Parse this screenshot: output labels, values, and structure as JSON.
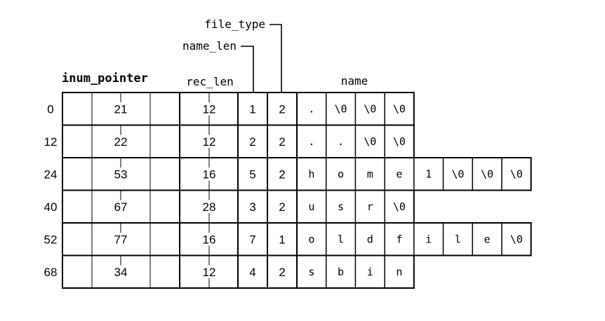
{
  "labels": {
    "inum_pointer": "inum_pointer",
    "rec_len": "rec_len",
    "name_len": "name_len",
    "file_type": "file_type",
    "name": "name"
  },
  "rows": [
    {
      "offset": "0",
      "inode": "21",
      "rec_len": "12",
      "name_len": "1",
      "file_type": "2",
      "name": [
        ".",
        "\\0",
        "\\0",
        "\\0"
      ]
    },
    {
      "offset": "12",
      "inode": "22",
      "rec_len": "12",
      "name_len": "2",
      "file_type": "2",
      "name": [
        ".",
        ".",
        "\\0",
        "\\0"
      ]
    },
    {
      "offset": "24",
      "inode": "53",
      "rec_len": "16",
      "name_len": "5",
      "file_type": "2",
      "name": [
        "h",
        "o",
        "m",
        "e",
        "1",
        "\\0",
        "\\0",
        "\\0"
      ]
    },
    {
      "offset": "40",
      "inode": "67",
      "rec_len": "28",
      "name_len": "3",
      "file_type": "2",
      "name": [
        "u",
        "s",
        "r",
        "\\0"
      ]
    },
    {
      "offset": "52",
      "inode": "77",
      "rec_len": "16",
      "name_len": "7",
      "file_type": "1",
      "name": [
        "o",
        "l",
        "d",
        "f",
        "i",
        "l",
        "e",
        "\\0"
      ]
    },
    {
      "offset": "68",
      "inode": "34",
      "rec_len": "12",
      "name_len": "4",
      "file_type": "2",
      "name": [
        "s",
        "b",
        "i",
        "n"
      ]
    }
  ]
}
